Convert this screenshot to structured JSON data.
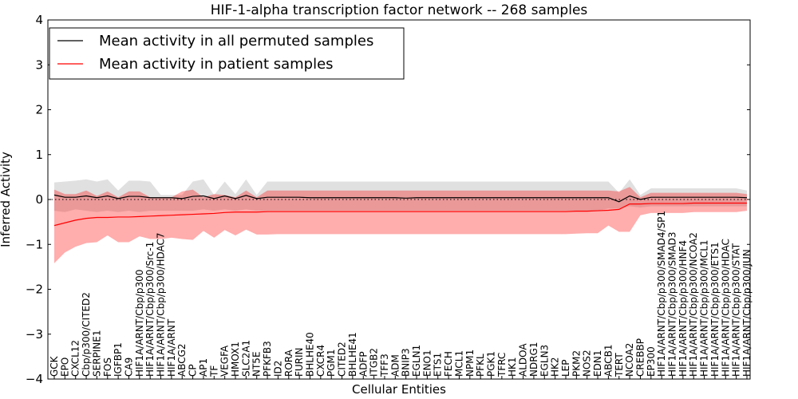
{
  "chart_data": {
    "type": "line",
    "title": "HIF-1-alpha transcription factor network -- 268 samples",
    "xlabel": "Cellular Entities",
    "ylabel": "Inferred Activity",
    "ylim": [
      -4,
      4
    ],
    "yticks": [
      {
        "value": 4,
        "label": "4"
      },
      {
        "value": 3,
        "label": "3"
      },
      {
        "value": 2,
        "label": "2"
      },
      {
        "value": 1,
        "label": "1"
      },
      {
        "value": 0,
        "label": "0"
      },
      {
        "value": -1,
        "label": "−1"
      },
      {
        "value": -2,
        "label": "−2"
      },
      {
        "value": -3,
        "label": "−3"
      },
      {
        "value": -4,
        "label": "−4"
      }
    ],
    "legend": {
      "location": "top-left",
      "entries": [
        {
          "label": "Mean activity in all permuted samples",
          "color": "#000000"
        },
        {
          "label": "Mean activity in patient samples",
          "color": "#ff0000"
        }
      ]
    },
    "zero_line": {
      "value": 0,
      "style": "dotted"
    },
    "colors": {
      "permuted_line": "#000000",
      "permuted_band": "#d9d9d9",
      "patient_line": "#ff0000",
      "patient_band": "#ff9999"
    },
    "categories": [
      "GCK",
      "EPO",
      "CXCL12",
      "Cbp/p300/CITED2",
      "SERPINE1",
      "FOS",
      "IGFBP1",
      "CA9",
      "HIF1A/ARNT/Cbp/p300",
      "HIF1A/ARNT/Cbp/p300/Src-1",
      "HIF1A/ARNT/Cbp/p300/HDAC7",
      "HIF1A/ARNT",
      "ABCG2",
      "CP",
      "AP1",
      "TF",
      "VEGFA",
      "HMOX1",
      "SLC2A1",
      "NT5E",
      "PFKFB3",
      "ID2",
      "RORA",
      "FURIN",
      "BHLHE40",
      "CXCR4",
      "PGM1",
      "CITED2",
      "BHLHE41",
      "ADFP",
      "ITGB2",
      "TFF3",
      "ADM",
      "BNIP3",
      "EGLN1",
      "ENO1",
      "ETS1",
      "FECH",
      "MCL1",
      "NPM1",
      "PFKL",
      "PGK1",
      "TFRC",
      "HK1",
      "ALDOA",
      "NDRG1",
      "EGLN3",
      "HK2",
      "LEP",
      "PKM2",
      "NOS2",
      "EDN1",
      "ABCB1",
      "TERT",
      "NCOA2",
      "CREBBP",
      "EP300",
      "HIF1A/ARNT/Cbp/p300/SMAD4/SP1",
      "HIF1A/ARNT/Cbp/p300/SMAD3",
      "HIF1A/ARNT/Cbp/p300/HNF4",
      "HIF1A/ARNT/Cbp/p300/NCOA2",
      "HIF1A/ARNT/Cbp/p300/MCL1",
      "HIF1A/ARNT/Cbp/p300/ETS1",
      "HIF1A/ARNT/Cbp/p300/HDAC",
      "HIF1A/ARNT/Cbp/p300/STAT",
      "HIF1A/ARNT/Cbp/p300/JUN"
    ],
    "series": [
      {
        "name": "Mean activity in all permuted samples",
        "mean": [
          0.1,
          0.05,
          0.05,
          0.08,
          0.04,
          0.08,
          0.02,
          0.07,
          0.07,
          0.04,
          0.04,
          0.04,
          0.02,
          0.07,
          0.08,
          0.02,
          0.08,
          0.02,
          0.09,
          0.02,
          0.05,
          0.05,
          0.05,
          0.05,
          0.04,
          0.04,
          0.04,
          0.04,
          0.04,
          0.04,
          0.04,
          0.04,
          0.04,
          0.03,
          0.04,
          0.04,
          0.04,
          0.04,
          0.04,
          0.04,
          0.04,
          0.04,
          0.04,
          0.04,
          0.04,
          0.04,
          0.04,
          0.04,
          0.04,
          0.04,
          0.04,
          0.04,
          0.04,
          -0.05,
          0.08,
          0.0,
          0.05,
          0.05,
          0.05,
          0.05,
          0.05,
          0.05,
          0.05,
          0.05,
          0.05,
          0.04
        ],
        "lower": [
          -0.25,
          -0.28,
          -0.22,
          -0.25,
          -0.28,
          -0.25,
          -0.28,
          -0.25,
          -0.28,
          -0.25,
          -0.25,
          -0.25,
          -0.25,
          -0.25,
          -0.22,
          -0.25,
          -0.22,
          -0.25,
          -0.22,
          -0.25,
          -0.25,
          -0.25,
          -0.25,
          -0.25,
          -0.25,
          -0.25,
          -0.25,
          -0.25,
          -0.25,
          -0.25,
          -0.25,
          -0.25,
          -0.25,
          -0.25,
          -0.25,
          -0.25,
          -0.25,
          -0.25,
          -0.25,
          -0.25,
          -0.25,
          -0.25,
          -0.25,
          -0.25,
          -0.25,
          -0.25,
          -0.25,
          -0.25,
          -0.25,
          -0.25,
          -0.25,
          -0.25,
          -0.2,
          -0.2,
          -0.15,
          -0.18,
          -0.15,
          -0.15,
          -0.15,
          -0.15,
          -0.15,
          -0.15,
          -0.15,
          -0.15,
          -0.15,
          -0.15
        ],
        "upper": [
          0.38,
          0.4,
          0.42,
          0.45,
          0.4,
          0.45,
          0.2,
          0.42,
          0.42,
          0.4,
          0.1,
          0.1,
          0.1,
          0.4,
          0.45,
          0.1,
          0.4,
          0.12,
          0.45,
          0.1,
          0.4,
          0.4,
          0.4,
          0.4,
          0.4,
          0.4,
          0.4,
          0.4,
          0.4,
          0.4,
          0.4,
          0.4,
          0.4,
          0.4,
          0.4,
          0.4,
          0.4,
          0.4,
          0.4,
          0.4,
          0.4,
          0.4,
          0.4,
          0.4,
          0.4,
          0.4,
          0.4,
          0.4,
          0.4,
          0.4,
          0.4,
          0.4,
          0.4,
          0.15,
          0.45,
          0.1,
          0.25,
          0.25,
          0.25,
          0.25,
          0.25,
          0.25,
          0.25,
          0.25,
          0.25,
          0.2
        ]
      },
      {
        "name": "Mean activity in patient samples",
        "mean": [
          -0.58,
          -0.52,
          -0.46,
          -0.42,
          -0.4,
          -0.4,
          -0.39,
          -0.39,
          -0.38,
          -0.37,
          -0.36,
          -0.35,
          -0.34,
          -0.33,
          -0.32,
          -0.31,
          -0.29,
          -0.28,
          -0.28,
          -0.28,
          -0.27,
          -0.27,
          -0.27,
          -0.27,
          -0.27,
          -0.27,
          -0.27,
          -0.27,
          -0.27,
          -0.27,
          -0.27,
          -0.27,
          -0.27,
          -0.27,
          -0.27,
          -0.27,
          -0.27,
          -0.27,
          -0.27,
          -0.27,
          -0.27,
          -0.27,
          -0.27,
          -0.27,
          -0.27,
          -0.27,
          -0.27,
          -0.27,
          -0.27,
          -0.26,
          -0.26,
          -0.25,
          -0.24,
          -0.22,
          -0.1,
          -0.1,
          -0.09,
          -0.09,
          -0.09,
          -0.09,
          -0.08,
          -0.08,
          -0.08,
          -0.08,
          -0.08,
          -0.08
        ],
        "lower": [
          -1.42,
          -1.18,
          -1.05,
          -0.97,
          -0.95,
          -0.8,
          -0.95,
          -0.95,
          -0.82,
          -0.88,
          -0.88,
          -0.85,
          -0.88,
          -0.9,
          -0.7,
          -0.85,
          -0.68,
          -0.8,
          -0.67,
          -0.78,
          -0.78,
          -0.77,
          -0.77,
          -0.77,
          -0.77,
          -0.77,
          -0.77,
          -0.77,
          -0.77,
          -0.77,
          -0.77,
          -0.77,
          -0.77,
          -0.77,
          -0.77,
          -0.77,
          -0.77,
          -0.77,
          -0.77,
          -0.77,
          -0.77,
          -0.77,
          -0.77,
          -0.77,
          -0.77,
          -0.77,
          -0.77,
          -0.77,
          -0.77,
          -0.76,
          -0.75,
          -0.75,
          -0.58,
          -0.72,
          -0.72,
          -0.35,
          -0.3,
          -0.3,
          -0.3,
          -0.3,
          -0.28,
          -0.28,
          -0.28,
          -0.28,
          -0.28,
          -0.25
        ],
        "upper": [
          0.22,
          0.12,
          0.12,
          0.2,
          0.08,
          0.18,
          0.05,
          0.18,
          0.18,
          0.05,
          0.05,
          0.05,
          0.18,
          0.22,
          0.05,
          0.12,
          0.1,
          0.05,
          0.2,
          0.05,
          0.2,
          0.2,
          0.2,
          0.2,
          0.2,
          0.2,
          0.2,
          0.2,
          0.2,
          0.2,
          0.2,
          0.2,
          0.2,
          0.2,
          0.2,
          0.2,
          0.2,
          0.2,
          0.2,
          0.2,
          0.2,
          0.2,
          0.2,
          0.2,
          0.2,
          0.2,
          0.2,
          0.2,
          0.2,
          0.2,
          0.2,
          0.2,
          0.2,
          0.18,
          0.28,
          0.05,
          0.15,
          0.15,
          0.15,
          0.15,
          0.15,
          0.15,
          0.15,
          0.15,
          0.15,
          0.12
        ]
      }
    ]
  }
}
